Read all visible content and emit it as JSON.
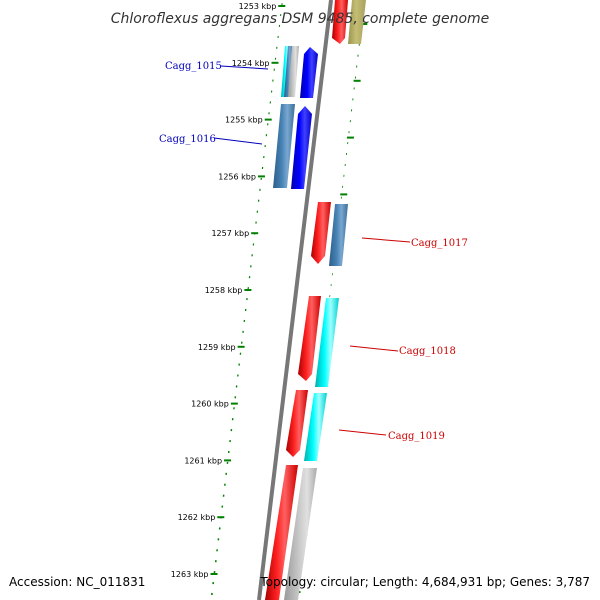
{
  "title": "Chloroflexus aggregans DSM 9485, complete genome",
  "footer": {
    "accession": "Accession: NC_011831",
    "topology": "Topology: circular; Length: 4,684,931 bp; Genes: 3,787"
  },
  "ticks": [
    "1253 kbp",
    "1254 kbp",
    "1255 kbp",
    "1256 kbp",
    "1257 kbp",
    "1258 kbp",
    "1259 kbp",
    "1260 kbp",
    "1261 kbp",
    "1262 kbp",
    "1263 kbp"
  ],
  "gene_labels": [
    {
      "id": "Cagg_1015",
      "text": "Cagg_1015",
      "color": "#0000bb"
    },
    {
      "id": "Cagg_1016",
      "text": "Cagg_1016",
      "color": "#0000bb"
    },
    {
      "id": "Cagg_1017",
      "text": "Cagg_1017",
      "color": "#cc0000"
    },
    {
      "id": "Cagg_1018",
      "text": "Cagg_1018",
      "color": "#cc0000"
    },
    {
      "id": "Cagg_1019",
      "text": "Cagg_1019",
      "color": "#cc0000"
    }
  ],
  "colors": {
    "forward_cds": "#ff0000",
    "reverse_cds": "#0000ff",
    "steel": "#4682b4",
    "cyan": "#00ffff",
    "gray": "#bbbbbb",
    "olive": "#bdb76b",
    "backbone": "#777777",
    "tick": "#008000"
  }
}
